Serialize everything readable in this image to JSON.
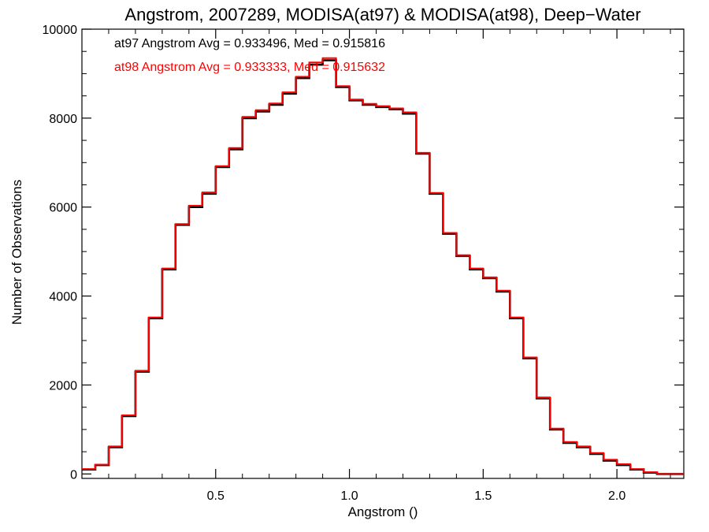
{
  "chart_data": {
    "type": "line",
    "title": "Angstrom, 2007289, MODISA(at97) & MODISA(at98), Deep−Water",
    "xlabel": "Angstrom ()",
    "ylabel": "Number of Observations",
    "xlim": [
      0.0,
      2.25
    ],
    "ylim": [
      -100,
      10000
    ],
    "xticks": [
      0.5,
      1.0,
      1.5,
      2.0
    ],
    "xtick_labels": [
      "0.5",
      "1.0",
      "1.5",
      "2.0"
    ],
    "yticks": [
      0,
      2000,
      4000,
      6000,
      8000,
      10000
    ],
    "ytick_labels": [
      "0",
      "2000",
      "4000",
      "6000",
      "8000",
      "10000"
    ],
    "grid": false,
    "step": "stairs",
    "annotations": [
      {
        "text": "at97 Angstrom Avg = 0.933496, Med = 0.915816",
        "color": "#000000"
      },
      {
        "text": "at98 Angstrom Avg = 0.933333, Med = 0.915632",
        "color": "#ff0000"
      }
    ],
    "x": [
      0.0,
      0.05,
      0.1,
      0.15,
      0.2,
      0.25,
      0.3,
      0.35,
      0.4,
      0.45,
      0.5,
      0.55,
      0.6,
      0.65,
      0.7,
      0.75,
      0.8,
      0.85,
      0.9,
      0.95,
      1.0,
      1.05,
      1.1,
      1.15,
      1.2,
      1.25,
      1.3,
      1.35,
      1.4,
      1.45,
      1.5,
      1.55,
      1.6,
      1.65,
      1.7,
      1.75,
      1.8,
      1.85,
      1.9,
      1.95,
      2.0,
      2.05,
      2.1,
      2.15,
      2.2,
      2.25
    ],
    "series": [
      {
        "name": "at97",
        "color": "#000000",
        "values": [
          100,
          200,
          600,
          1300,
          2300,
          3500,
          4600,
          5600,
          6000,
          6300,
          6900,
          7300,
          8000,
          8150,
          8300,
          8550,
          8900,
          9200,
          9300,
          8700,
          8400,
          8300,
          8250,
          8200,
          8100,
          7200,
          6300,
          5400,
          4900,
          4600,
          4400,
          4100,
          3500,
          2600,
          1700,
          1000,
          700,
          600,
          450,
          300,
          200,
          100,
          30,
          0,
          0,
          0
        ]
      },
      {
        "name": "at98",
        "color": "#ff0000",
        "values": [
          110,
          210,
          620,
          1320,
          2320,
          3520,
          4620,
          5620,
          6030,
          6330,
          6920,
          7330,
          8030,
          8180,
          8330,
          8580,
          8930,
          9250,
          9350,
          8720,
          8420,
          8320,
          8270,
          8220,
          8130,
          7220,
          6320,
          5420,
          4920,
          4620,
          4420,
          4120,
          3520,
          2620,
          1720,
          1020,
          720,
          620,
          470,
          320,
          220,
          110,
          40,
          0,
          0,
          0
        ]
      }
    ]
  }
}
